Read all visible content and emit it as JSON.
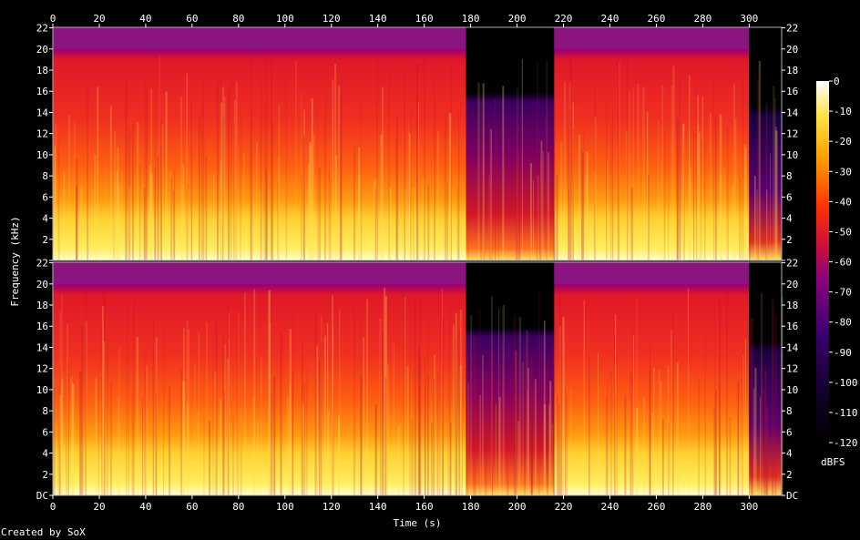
{
  "chart_data": {
    "type": "heatmap",
    "title": "",
    "xlabel": "Time (s)",
    "ylabel": "Frequency (kHz)",
    "xlim": [
      0,
      314
    ],
    "ylim": [
      0,
      22.05
    ],
    "x_ticks": [
      0,
      20,
      40,
      60,
      80,
      100,
      120,
      140,
      160,
      180,
      200,
      220,
      240,
      260,
      280,
      300
    ],
    "y_ticks": [
      {
        "value": 0,
        "label": "DC"
      },
      {
        "value": 2,
        "label": "2"
      },
      {
        "value": 4,
        "label": "4"
      },
      {
        "value": 6,
        "label": "6"
      },
      {
        "value": 8,
        "label": "8"
      },
      {
        "value": 10,
        "label": "10"
      },
      {
        "value": 12,
        "label": "12"
      },
      {
        "value": 14,
        "label": "14"
      },
      {
        "value": 16,
        "label": "16"
      },
      {
        "value": 18,
        "label": "18"
      },
      {
        "value": 20,
        "label": "20"
      },
      {
        "value": 22,
        "label": "22"
      }
    ],
    "channels": 2,
    "colorbar": {
      "label": "dBFS",
      "range": [
        -120,
        0
      ],
      "ticks": [
        0,
        -10,
        -20,
        -30,
        -40,
        -50,
        -60,
        -70,
        -80,
        -90,
        -100,
        -110,
        -120
      ],
      "colors": [
        "#000000",
        "#2a0060",
        "#7a0090",
        "#d01040",
        "#ff4000",
        "#ffb000",
        "#ffff60",
        "#ffffff"
      ]
    },
    "segments": [
      {
        "start": 0,
        "end": 178,
        "cutoff_khz": 20,
        "level": "loud"
      },
      {
        "start": 178,
        "end": 216,
        "cutoff_khz": 15.5,
        "level": "quiet"
      },
      {
        "start": 216,
        "end": 300,
        "cutoff_khz": 20,
        "level": "loud"
      },
      {
        "start": 300,
        "end": 314,
        "cutoff_khz": 14,
        "level": "fade"
      }
    ]
  },
  "footer": {
    "credit": "Created by SoX"
  }
}
